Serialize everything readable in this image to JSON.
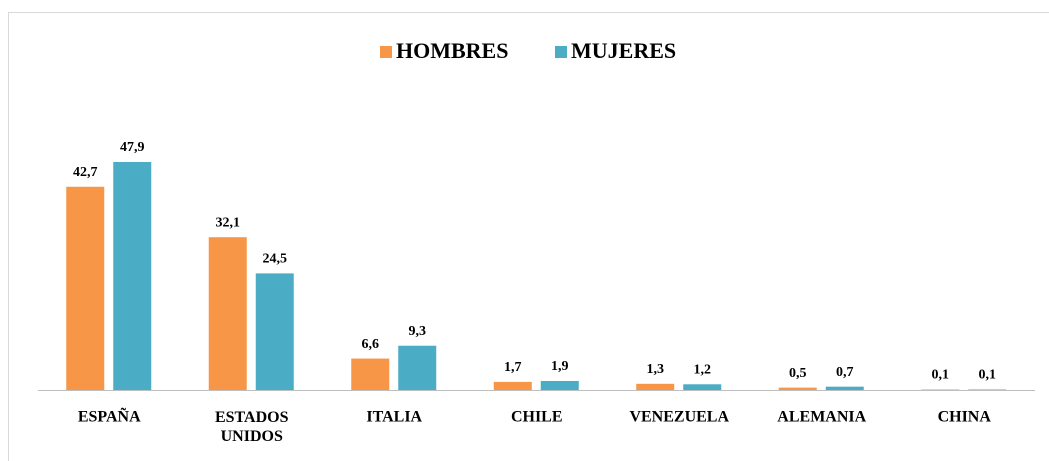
{
  "chart_data": {
    "type": "bar",
    "categories": [
      "ESPAÑA",
      "ESTADOS UNIDOS",
      "ITALIA",
      "CHILE",
      "VENEZUELA",
      "ALEMANIA",
      "CHINA"
    ],
    "series": [
      {
        "name": "HOMBRES",
        "color": "#f79646",
        "values": [
          42.7,
          32.1,
          6.6,
          1.7,
          1.3,
          0.5,
          0.1
        ],
        "value_labels": [
          "42,7",
          "32,1",
          "6,6",
          "1,7",
          "1,3",
          "0,5",
          "0,1"
        ]
      },
      {
        "name": "MUJERES",
        "color": "#4bacc6",
        "values": [
          47.9,
          24.5,
          9.3,
          1.9,
          1.2,
          0.7,
          0.1
        ],
        "value_labels": [
          "47,9",
          "24,5",
          "9,3",
          "1,9",
          "1,2",
          "0,7",
          "0,1"
        ]
      }
    ],
    "legend": "top"
  }
}
